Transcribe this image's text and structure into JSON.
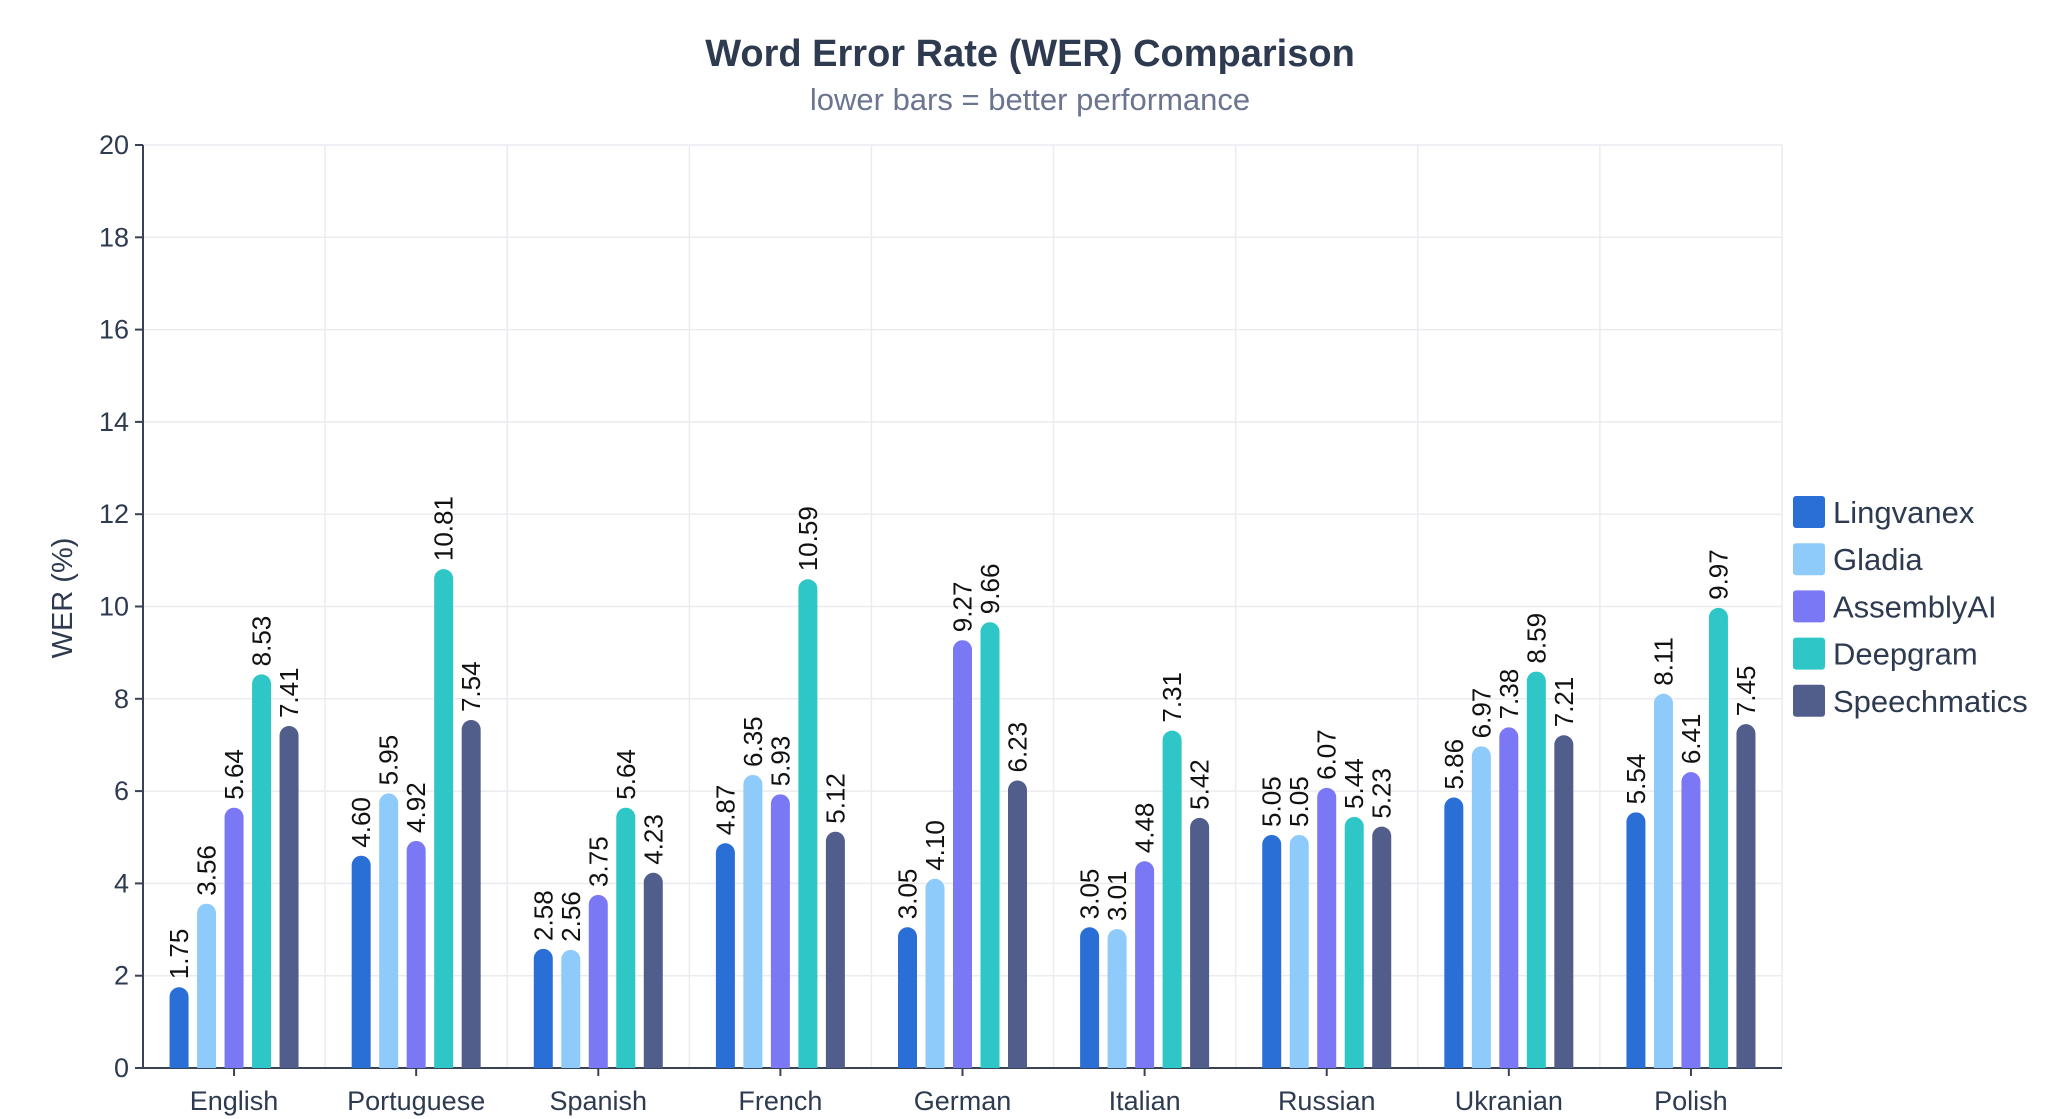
{
  "chart_data": {
    "type": "bar",
    "title": "Word Error Rate (WER) Comparison",
    "subtitle": "lower bars = better performance",
    "xlabel": "",
    "ylabel": "WER (%)",
    "ylim": [
      0,
      20
    ],
    "yticks": [
      0,
      2,
      4,
      6,
      8,
      10,
      12,
      14,
      16,
      18,
      20
    ],
    "grid": true,
    "legend_position": "right",
    "categories": [
      "English",
      "Portuguese",
      "Spanish",
      "French",
      "German",
      "Italian",
      "Russian",
      "Ukranian",
      "Polish"
    ],
    "series": [
      {
        "name": "Lingvanex",
        "color": "#2a6fd6",
        "values": [
          1.75,
          4.6,
          2.58,
          4.87,
          3.05,
          3.05,
          5.05,
          5.86,
          5.54
        ]
      },
      {
        "name": "Gladia",
        "color": "#8ecbfb",
        "values": [
          3.56,
          5.95,
          2.56,
          6.35,
          4.1,
          3.01,
          5.05,
          6.97,
          8.11
        ]
      },
      {
        "name": "AssemblyAI",
        "color": "#7b78f5",
        "values": [
          5.64,
          4.92,
          3.75,
          5.93,
          9.27,
          4.48,
          6.07,
          7.38,
          6.41
        ]
      },
      {
        "name": "Deepgram",
        "color": "#2ec6c6",
        "values": [
          8.53,
          10.81,
          5.64,
          10.59,
          9.66,
          7.31,
          5.44,
          8.59,
          9.97
        ]
      },
      {
        "name": "Speechmatics",
        "color": "#515e8c",
        "values": [
          7.41,
          7.54,
          4.23,
          5.12,
          6.23,
          5.42,
          5.23,
          7.21,
          7.45
        ]
      }
    ]
  }
}
